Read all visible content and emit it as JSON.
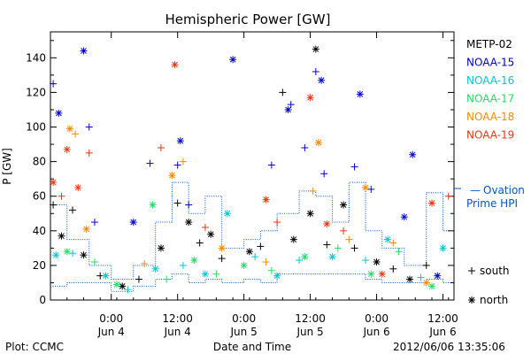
{
  "chart_data": {
    "type": "scatter",
    "title": "Hemispheric Power [GW]",
    "ylabel": "P [GW]",
    "xlabel": "Date and Time",
    "xlim": [
      "2012-06-03 13:00",
      "2012-06-06 14:00"
    ],
    "ylim": [
      0,
      155
    ],
    "yticks": [
      0,
      20,
      40,
      60,
      80,
      100,
      120,
      140
    ],
    "xticks": [
      {
        "x": "2012-06-04 00:00",
        "time": "0:00",
        "date": "Jun 4"
      },
      {
        "x": "2012-06-04 12:00",
        "time": "12:00",
        "date": "Jun 4"
      },
      {
        "x": "2012-06-05 00:00",
        "time": "0:00",
        "date": "Jun 5"
      },
      {
        "x": "2012-06-05 12:00",
        "time": "12:00",
        "date": "Jun 5"
      },
      {
        "x": "2012-06-06 00:00",
        "time": "0:00",
        "date": "Jun 6"
      },
      {
        "x": "2012-06-06 12:00",
        "time": "12:00",
        "date": "Jun 6"
      }
    ],
    "legend_placement": "right",
    "symbol_legend": [
      {
        "marker": "+",
        "label": "south"
      },
      {
        "marker": "*",
        "label": "north"
      }
    ],
    "series": [
      {
        "name": "METP-02",
        "color": "#000000",
        "points": [
          {
            "x": "2012-06-03 13:30",
            "y": 55,
            "m": "+"
          },
          {
            "x": "2012-06-03 15:00",
            "y": 37,
            "m": "*"
          },
          {
            "x": "2012-06-03 17:00",
            "y": 52,
            "m": "+"
          },
          {
            "x": "2012-06-03 19:00",
            "y": 26,
            "m": "*"
          },
          {
            "x": "2012-06-03 22:00",
            "y": 14,
            "m": "+"
          },
          {
            "x": "2012-06-04 02:00",
            "y": 8,
            "m": "*"
          },
          {
            "x": "2012-06-04 05:00",
            "y": 12,
            "m": "+"
          },
          {
            "x": "2012-06-04 09:00",
            "y": 30,
            "m": "*"
          },
          {
            "x": "2012-06-04 12:00",
            "y": 56,
            "m": "+"
          },
          {
            "x": "2012-06-04 14:00",
            "y": 45,
            "m": "*"
          },
          {
            "x": "2012-06-04 16:00",
            "y": 33,
            "m": "+"
          },
          {
            "x": "2012-06-04 18:00",
            "y": 38,
            "m": "*"
          },
          {
            "x": "2012-06-04 20:00",
            "y": 24,
            "m": "+"
          },
          {
            "x": "2012-06-05 01:00",
            "y": 28,
            "m": "*"
          },
          {
            "x": "2012-06-05 03:00",
            "y": 31,
            "m": "+"
          },
          {
            "x": "2012-06-05 07:00",
            "y": 120,
            "m": "+"
          },
          {
            "x": "2012-06-05 09:00",
            "y": 35,
            "m": "*"
          },
          {
            "x": "2012-06-05 12:00",
            "y": 50,
            "m": "*"
          },
          {
            "x": "2012-06-05 13:00",
            "y": 145,
            "m": "*"
          },
          {
            "x": "2012-06-05 15:00",
            "y": 32,
            "m": "+"
          },
          {
            "x": "2012-06-05 18:00",
            "y": 55,
            "m": "*"
          },
          {
            "x": "2012-06-05 20:00",
            "y": 30,
            "m": "+"
          },
          {
            "x": "2012-06-06 00:00",
            "y": 22,
            "m": "*"
          },
          {
            "x": "2012-06-06 03:00",
            "y": 18,
            "m": "+"
          },
          {
            "x": "2012-06-06 06:00",
            "y": 12,
            "m": "*"
          },
          {
            "x": "2012-06-06 09:00",
            "y": 20,
            "m": "+"
          }
        ]
      },
      {
        "name": "NOAA-15",
        "color": "#0000cc",
        "points": [
          {
            "x": "2012-06-03 13:30",
            "y": 125,
            "m": "+"
          },
          {
            "x": "2012-06-03 14:30",
            "y": 108,
            "m": "*"
          },
          {
            "x": "2012-06-03 19:00",
            "y": 144,
            "m": "*"
          },
          {
            "x": "2012-06-03 20:00",
            "y": 100,
            "m": "+"
          },
          {
            "x": "2012-06-03 21:00",
            "y": 45,
            "m": "+"
          },
          {
            "x": "2012-06-04 04:00",
            "y": 45,
            "m": "*"
          },
          {
            "x": "2012-06-04 07:00",
            "y": 79,
            "m": "+"
          },
          {
            "x": "2012-06-04 12:00",
            "y": 78,
            "m": "+"
          },
          {
            "x": "2012-06-04 12:30",
            "y": 92,
            "m": "*"
          },
          {
            "x": "2012-06-04 14:00",
            "y": 55,
            "m": "+"
          },
          {
            "x": "2012-06-04 22:00",
            "y": 139,
            "m": "*"
          },
          {
            "x": "2012-06-05 05:00",
            "y": 78,
            "m": "+"
          },
          {
            "x": "2012-06-05 08:00",
            "y": 110,
            "m": "*"
          },
          {
            "x": "2012-06-05 08:30",
            "y": 113,
            "m": "+"
          },
          {
            "x": "2012-06-05 11:00",
            "y": 88,
            "m": "+"
          },
          {
            "x": "2012-06-05 13:00",
            "y": 132,
            "m": "+"
          },
          {
            "x": "2012-06-05 14:00",
            "y": 127,
            "m": "*"
          },
          {
            "x": "2012-06-05 14:30",
            "y": 73,
            "m": "+"
          },
          {
            "x": "2012-06-05 20:00",
            "y": 77,
            "m": "+"
          },
          {
            "x": "2012-06-05 21:00",
            "y": 119,
            "m": "*"
          },
          {
            "x": "2012-06-06 05:00",
            "y": 48,
            "m": "*"
          },
          {
            "x": "2012-06-06 06:30",
            "y": 84,
            "m": "*"
          },
          {
            "x": "2012-06-05 23:00",
            "y": 64,
            "m": "+"
          },
          {
            "x": "2012-06-06 11:00",
            "y": 14,
            "m": "*"
          }
        ]
      },
      {
        "name": "NOAA-16",
        "color": "#00c8d2",
        "points": [
          {
            "x": "2012-06-03 14:00",
            "y": 26,
            "m": "*"
          },
          {
            "x": "2012-06-03 17:00",
            "y": 27,
            "m": "+"
          },
          {
            "x": "2012-06-03 23:00",
            "y": 14,
            "m": "*"
          },
          {
            "x": "2012-06-04 03:00",
            "y": 6,
            "m": "+"
          },
          {
            "x": "2012-06-04 08:00",
            "y": 18,
            "m": "*"
          },
          {
            "x": "2012-06-04 13:00",
            "y": 20,
            "m": "+"
          },
          {
            "x": "2012-06-04 17:00",
            "y": 15,
            "m": "*"
          },
          {
            "x": "2012-06-04 21:00",
            "y": 50,
            "m": "*"
          },
          {
            "x": "2012-06-05 02:00",
            "y": 25,
            "m": "+"
          },
          {
            "x": "2012-06-05 06:00",
            "y": 14,
            "m": "*"
          },
          {
            "x": "2012-06-05 10:00",
            "y": 23,
            "m": "+"
          },
          {
            "x": "2012-06-05 16:00",
            "y": 25,
            "m": "*"
          },
          {
            "x": "2012-06-05 22:00",
            "y": 23,
            "m": "+"
          },
          {
            "x": "2012-06-06 02:00",
            "y": 35,
            "m": "*"
          },
          {
            "x": "2012-06-06 08:00",
            "y": 13,
            "m": "+"
          },
          {
            "x": "2012-06-06 12:00",
            "y": 30,
            "m": "*"
          }
        ]
      },
      {
        "name": "NOAA-17",
        "color": "#22dd66",
        "points": [
          {
            "x": "2012-06-03 16:00",
            "y": 28,
            "m": "*"
          },
          {
            "x": "2012-06-03 21:00",
            "y": 22,
            "m": "+"
          },
          {
            "x": "2012-06-04 01:00",
            "y": 9,
            "m": "*"
          },
          {
            "x": "2012-06-04 07:30",
            "y": 55,
            "m": "*"
          },
          {
            "x": "2012-06-04 10:00",
            "y": 12,
            "m": "+"
          },
          {
            "x": "2012-06-04 15:00",
            "y": 23,
            "m": "*"
          },
          {
            "x": "2012-06-04 19:00",
            "y": 15,
            "m": "+"
          },
          {
            "x": "2012-06-05 00:00",
            "y": 20,
            "m": "*"
          },
          {
            "x": "2012-06-05 05:00",
            "y": 17,
            "m": "+"
          },
          {
            "x": "2012-06-05 11:00",
            "y": 25,
            "m": "*"
          },
          {
            "x": "2012-06-05 17:00",
            "y": 30,
            "m": "+"
          },
          {
            "x": "2012-06-05 23:00",
            "y": 15,
            "m": "*"
          },
          {
            "x": "2012-06-06 04:00",
            "y": 28,
            "m": "+"
          },
          {
            "x": "2012-06-06 10:00",
            "y": 8,
            "m": "*"
          }
        ]
      },
      {
        "name": "NOAA-18",
        "color": "#ff8800",
        "points": [
          {
            "x": "2012-06-03 16:30",
            "y": 99,
            "m": "*"
          },
          {
            "x": "2012-06-03 17:30",
            "y": 96,
            "m": "+"
          },
          {
            "x": "2012-06-03 19:30",
            "y": 41,
            "m": "*"
          },
          {
            "x": "2012-06-04 06:00",
            "y": 21,
            "m": "+"
          },
          {
            "x": "2012-06-04 11:00",
            "y": 72,
            "m": "*"
          },
          {
            "x": "2012-06-04 13:00",
            "y": 80,
            "m": "+"
          },
          {
            "x": "2012-06-04 20:00",
            "y": 30,
            "m": "*"
          },
          {
            "x": "2012-06-05 04:00",
            "y": 22,
            "m": "+"
          },
          {
            "x": "2012-06-05 12:30",
            "y": 63,
            "m": "+"
          },
          {
            "x": "2012-06-05 13:30",
            "y": 91,
            "m": "*"
          },
          {
            "x": "2012-06-05 19:00",
            "y": 35,
            "m": "+"
          },
          {
            "x": "2012-06-05 22:00",
            "y": 65,
            "m": "*"
          },
          {
            "x": "2012-06-06 03:00",
            "y": 33,
            "m": "+"
          },
          {
            "x": "2012-06-06 09:00",
            "y": 10,
            "m": "*"
          }
        ]
      },
      {
        "name": "NOAA-19",
        "color": "#ee3311",
        "points": [
          {
            "x": "2012-06-03 13:30",
            "y": 68,
            "m": "*"
          },
          {
            "x": "2012-06-03 15:00",
            "y": 60,
            "m": "+"
          },
          {
            "x": "2012-06-03 16:00",
            "y": 87,
            "m": "*"
          },
          {
            "x": "2012-06-03 18:00",
            "y": 65,
            "m": "*"
          },
          {
            "x": "2012-06-03 20:00",
            "y": 85,
            "m": "+"
          },
          {
            "x": "2012-06-04 09:00",
            "y": 88,
            "m": "+"
          },
          {
            "x": "2012-06-04 11:30",
            "y": 136,
            "m": "*"
          },
          {
            "x": "2012-06-04 17:00",
            "y": 42,
            "m": "+"
          },
          {
            "x": "2012-06-05 04:00",
            "y": 58,
            "m": "*"
          },
          {
            "x": "2012-06-05 06:00",
            "y": 45,
            "m": "+"
          },
          {
            "x": "2012-06-05 12:00",
            "y": 117,
            "m": "*"
          },
          {
            "x": "2012-06-05 15:00",
            "y": 44,
            "m": "*"
          },
          {
            "x": "2012-06-05 18:00",
            "y": 40,
            "m": "+"
          },
          {
            "x": "2012-06-06 01:00",
            "y": 15,
            "m": "*"
          },
          {
            "x": "2012-06-06 10:00",
            "y": 56,
            "m": "*"
          },
          {
            "x": "2012-06-06 13:00",
            "y": 60,
            "m": "+"
          }
        ]
      }
    ],
    "reference_series": {
      "name": "Ovation Prime HPI",
      "color": "#0055cc",
      "style": "dotted-step",
      "steps": [
        {
          "x": "2012-06-03 13:00",
          "lo": 8,
          "hi": 55
        },
        {
          "x": "2012-06-03 16:00",
          "lo": 10,
          "hi": 35
        },
        {
          "x": "2012-06-03 20:00",
          "lo": 10,
          "hi": 20
        },
        {
          "x": "2012-06-04 00:00",
          "lo": 5,
          "hi": 12
        },
        {
          "x": "2012-06-04 04:00",
          "lo": 8,
          "hi": 20
        },
        {
          "x": "2012-06-04 08:00",
          "lo": 12,
          "hi": 45
        },
        {
          "x": "2012-06-04 11:00",
          "lo": 15,
          "hi": 68
        },
        {
          "x": "2012-06-04 14:00",
          "lo": 10,
          "hi": 50
        },
        {
          "x": "2012-06-04 17:00",
          "lo": 12,
          "hi": 60
        },
        {
          "x": "2012-06-04 20:00",
          "lo": 10,
          "hi": 30
        },
        {
          "x": "2012-06-05 00:00",
          "lo": 12,
          "hi": 35
        },
        {
          "x": "2012-06-05 03:00",
          "lo": 10,
          "hi": 40
        },
        {
          "x": "2012-06-05 06:00",
          "lo": 15,
          "hi": 50
        },
        {
          "x": "2012-06-05 10:00",
          "lo": 15,
          "hi": 63
        },
        {
          "x": "2012-06-05 13:00",
          "lo": 15,
          "hi": 60
        },
        {
          "x": "2012-06-05 16:00",
          "lo": 15,
          "hi": 45
        },
        {
          "x": "2012-06-05 19:00",
          "lo": 15,
          "hi": 68
        },
        {
          "x": "2012-06-05 22:00",
          "lo": 12,
          "hi": 40
        },
        {
          "x": "2012-06-06 01:00",
          "lo": 10,
          "hi": 30
        },
        {
          "x": "2012-06-06 05:00",
          "lo": 10,
          "hi": 20
        },
        {
          "x": "2012-06-06 09:00",
          "lo": 12,
          "hi": 62
        },
        {
          "x": "2012-06-06 12:00",
          "lo": 10,
          "hi": 40
        }
      ]
    },
    "annotations": {
      "plot_by": "Plot: CCMC",
      "timestamp": "2012/06/06 13:35:06",
      "ovation_dash": "—",
      "ovation_line1": "Ovation",
      "ovation_line2": "Prime HPI"
    }
  }
}
